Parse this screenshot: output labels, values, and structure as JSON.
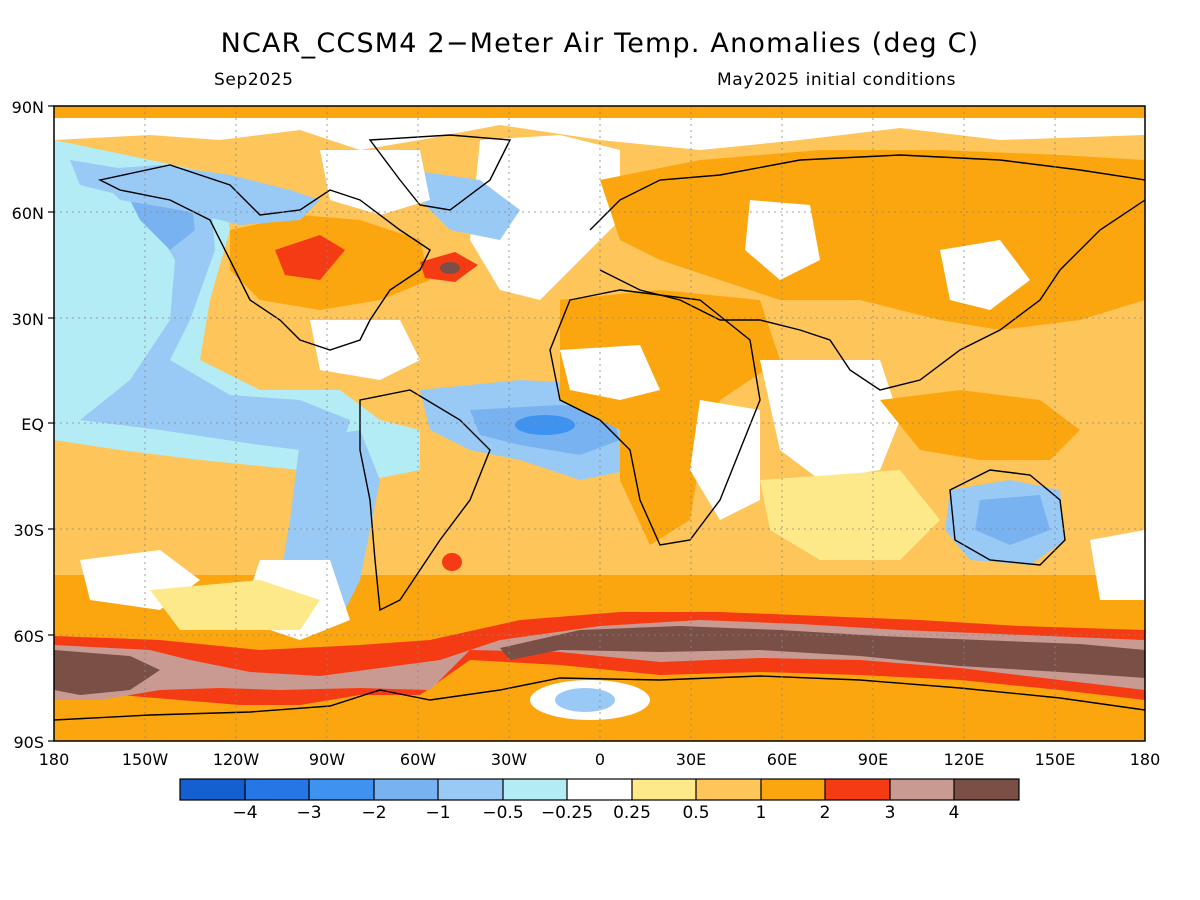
{
  "title": "NCAR_CCSM4 2−Meter Air Temp. Anomalies (deg C)",
  "subtitle_left": "Sep2025",
  "subtitle_right": "May2025 initial conditions",
  "lat_labels": [
    "90N",
    "60N",
    "30N",
    "EQ",
    "30S",
    "60S",
    "90S"
  ],
  "lon_labels": [
    "180",
    "150W",
    "120W",
    "90W",
    "60W",
    "30W",
    "0",
    "30E",
    "60E",
    "90E",
    "120E",
    "150E",
    "180"
  ],
  "legend": {
    "colors": [
      "#1560d0",
      "#2577e6",
      "#3f93f0",
      "#78b2f0",
      "#99c9f5",
      "#b4ecf6",
      "#ffffff",
      "#fde98a",
      "#fdc55a",
      "#fba60e",
      "#f53b14",
      "#c99a92",
      "#7a4f45"
    ],
    "labels": [
      "−4",
      "−3",
      "−2",
      "−1",
      "−0.5",
      "−0.25",
      "0.25",
      "0.5",
      "1",
      "2",
      "3",
      "4"
    ]
  },
  "map_colors": {
    "background": "#fdc55a",
    "ocean_warm": "#fba60e",
    "strong_warm": "#f53b14",
    "very_warm": "#c99a92",
    "extreme_warm": "#7a4f45",
    "neutral": "#ffffff",
    "light_warm": "#fde98a",
    "light_cool": "#b4ecf6",
    "cool": "#99c9f5",
    "moderate_cool": "#78b2f0",
    "strong_cool": "#3f93f0"
  }
}
